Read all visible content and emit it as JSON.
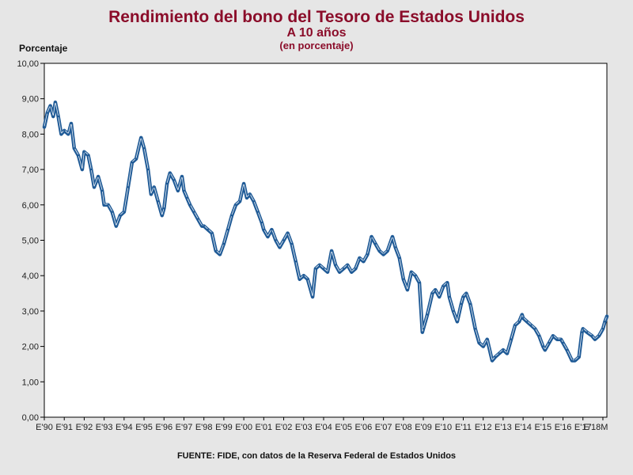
{
  "chart_data": {
    "type": "line",
    "title": "Rendimiento del bono del Tesoro de Estados Unidos",
    "subtitle": "A 10 años",
    "subtitle2": "(en porcentaje)",
    "ylabel": "Porcentaje",
    "xlabel": "",
    "source": "FUENTE: FIDE, con datos de la Reserva Federal de Estados Unidos",
    "ylim": [
      0,
      10
    ],
    "yticks": [
      "0,00",
      "1,00",
      "2,00",
      "3,00",
      "4,00",
      "5,00",
      "6,00",
      "7,00",
      "8,00",
      "9,00",
      "10,00"
    ],
    "xticks": [
      "E'90",
      "E'91",
      "E'92",
      "E'93",
      "E'94",
      "E'95",
      "E'96",
      "E'97",
      "E'98",
      "E'99",
      "E'00",
      "E'01",
      "E'02",
      "E'03",
      "E'04",
      "E'05",
      "E'06",
      "E'07",
      "E'08",
      "E'09",
      "E'10",
      "E'11",
      "E'12",
      "E'13",
      "E'14",
      "E'15",
      "E'16",
      "E'17",
      "E'18M"
    ],
    "grid": false,
    "legend": "none",
    "colors": {
      "line": "#1f5a96",
      "highlight": "#ffffff",
      "title": "#8b0d2a",
      "plot_bg": "#ffffff",
      "page_bg": "#e6e6e6"
    },
    "series": [
      {
        "x": [
          1990.0,
          1990.15,
          1990.3,
          1990.45,
          1990.55,
          1990.7,
          1990.85,
          1991.0,
          1991.2,
          1991.35,
          1991.5,
          1991.7,
          1991.9,
          1992.0,
          1992.2,
          1992.35,
          1992.5,
          1992.7,
          1992.9,
          1993.0,
          1993.2,
          1993.4,
          1993.6,
          1993.8,
          1994.0,
          1994.2,
          1994.4,
          1994.6,
          1994.85,
          1995.0,
          1995.2,
          1995.35,
          1995.5,
          1995.7,
          1995.9,
          1996.0,
          1996.15,
          1996.3,
          1996.5,
          1996.7,
          1996.9,
          1997.0,
          1997.15,
          1997.3,
          1997.5,
          1997.7,
          1997.9,
          1998.0,
          1998.2,
          1998.4,
          1998.6,
          1998.8,
          1999.0,
          1999.2,
          1999.4,
          1999.6,
          1999.8,
          2000.0,
          2000.15,
          2000.3,
          2000.5,
          2000.7,
          2000.9,
          2001.0,
          2001.2,
          2001.4,
          2001.6,
          2001.8,
          2002.0,
          2002.2,
          2002.4,
          2002.6,
          2002.8,
          2003.0,
          2003.2,
          2003.45,
          2003.6,
          2003.8,
          2004.0,
          2004.2,
          2004.4,
          2004.6,
          2004.8,
          2005.0,
          2005.2,
          2005.4,
          2005.6,
          2005.8,
          2006.0,
          2006.2,
          2006.4,
          2006.6,
          2006.8,
          2007.0,
          2007.2,
          2007.45,
          2007.6,
          2007.8,
          2008.0,
          2008.2,
          2008.4,
          2008.6,
          2008.8,
          2008.95,
          2009.0,
          2009.2,
          2009.45,
          2009.6,
          2009.8,
          2010.0,
          2010.2,
          2010.3,
          2010.5,
          2010.7,
          2010.9,
          2011.0,
          2011.15,
          2011.35,
          2011.6,
          2011.8,
          2012.0,
          2012.2,
          2012.45,
          2012.6,
          2012.8,
          2013.0,
          2013.2,
          2013.4,
          2013.6,
          2013.8,
          2013.95,
          2014.0,
          2014.2,
          2014.4,
          2014.6,
          2014.8,
          2015.0,
          2015.1,
          2015.3,
          2015.5,
          2015.7,
          2015.9,
          2016.0,
          2016.2,
          2016.45,
          2016.6,
          2016.8,
          2016.95,
          2017.0,
          2017.2,
          2017.45,
          2017.6,
          2017.8,
          2018.0,
          2018.1,
          2018.2
        ],
        "values": [
          8.2,
          8.6,
          8.8,
          8.5,
          8.9,
          8.5,
          8.0,
          8.1,
          8.0,
          8.3,
          7.6,
          7.4,
          7.0,
          7.5,
          7.4,
          7.0,
          6.5,
          6.8,
          6.4,
          6.0,
          6.0,
          5.8,
          5.4,
          5.7,
          5.8,
          6.5,
          7.2,
          7.3,
          7.9,
          7.6,
          7.0,
          6.3,
          6.5,
          6.1,
          5.7,
          5.9,
          6.6,
          6.9,
          6.7,
          6.4,
          6.8,
          6.4,
          6.2,
          6.0,
          5.8,
          5.6,
          5.4,
          5.4,
          5.3,
          5.2,
          4.7,
          4.6,
          4.9,
          5.3,
          5.7,
          6.0,
          6.1,
          6.6,
          6.2,
          6.3,
          6.1,
          5.8,
          5.5,
          5.3,
          5.1,
          5.3,
          5.0,
          4.8,
          5.0,
          5.2,
          4.9,
          4.4,
          3.9,
          4.0,
          3.9,
          3.4,
          4.2,
          4.3,
          4.2,
          4.1,
          4.7,
          4.3,
          4.1,
          4.2,
          4.3,
          4.1,
          4.2,
          4.5,
          4.4,
          4.6,
          5.1,
          4.9,
          4.7,
          4.6,
          4.7,
          5.1,
          4.8,
          4.5,
          3.9,
          3.6,
          4.1,
          4.0,
          3.8,
          2.4,
          2.5,
          2.9,
          3.5,
          3.6,
          3.4,
          3.7,
          3.8,
          3.4,
          3.0,
          2.7,
          3.2,
          3.4,
          3.5,
          3.2,
          2.5,
          2.1,
          2.0,
          2.2,
          1.6,
          1.7,
          1.8,
          1.9,
          1.8,
          2.2,
          2.6,
          2.7,
          2.9,
          2.8,
          2.7,
          2.6,
          2.5,
          2.3,
          2.0,
          1.9,
          2.1,
          2.3,
          2.2,
          2.2,
          2.1,
          1.9,
          1.6,
          1.6,
          1.7,
          2.4,
          2.5,
          2.4,
          2.3,
          2.2,
          2.3,
          2.5,
          2.7,
          2.85
        ]
      }
    ]
  }
}
